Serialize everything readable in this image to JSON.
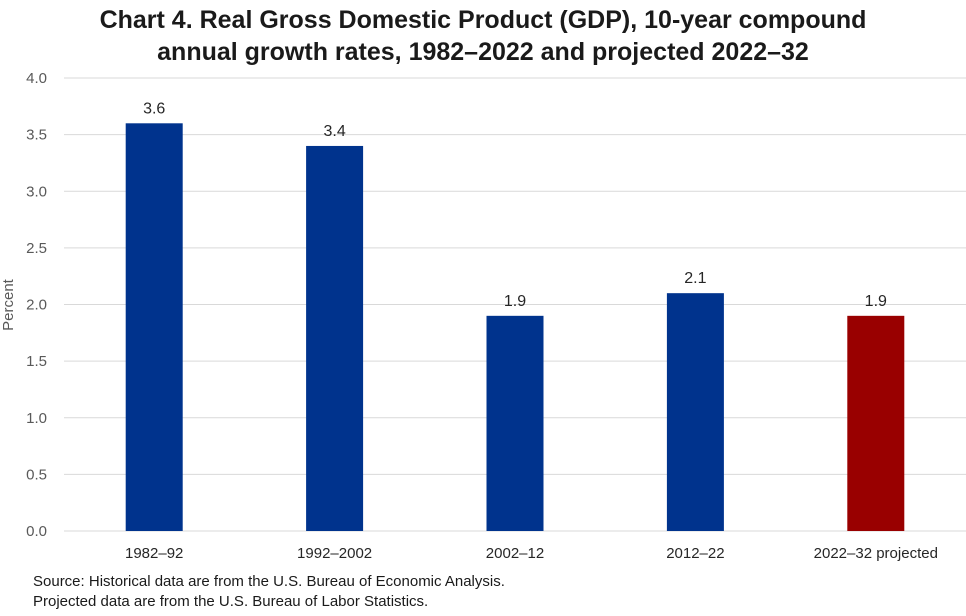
{
  "title_lines": [
    "Chart 4. Real Gross Domestic Product (GDP), 10-year compound",
    "annual growth rates, 1982–2022 and projected 2022–32"
  ],
  "source_lines": [
    "Source: Historical data are from the U.S. Bureau of Economic Analysis.",
    "Projected data are from the U.S. Bureau of Labor Statistics."
  ],
  "chart_data": {
    "type": "bar",
    "title": "Chart 4. Real Gross Domestic Product (GDP), 10-year compound annual growth rates, 1982–2022 and projected 2022–32",
    "categories": [
      "1982–92",
      "1992–2002",
      "2002–12",
      "2012–22",
      "2022–32 projected"
    ],
    "values": [
      3.6,
      3.4,
      1.9,
      2.1,
      1.9
    ],
    "data_labels": [
      "3.6",
      "3.4",
      "1.9",
      "2.1",
      "1.9"
    ],
    "bar_colors": [
      "#00338d",
      "#00338d",
      "#00338d",
      "#00338d",
      "#990000"
    ],
    "xlabel": "",
    "ylabel": "Percent",
    "ylim": [
      0,
      4.0
    ],
    "yticks": [
      "0.0",
      "0.5",
      "1.0",
      "1.5",
      "2.0",
      "2.5",
      "3.0",
      "3.5",
      "4.0"
    ],
    "grid": true,
    "legend": "none"
  },
  "colors": {
    "historical": "#00338d",
    "projected": "#990000",
    "gridline": "#d9d9d9",
    "axis_text": "#595959"
  }
}
